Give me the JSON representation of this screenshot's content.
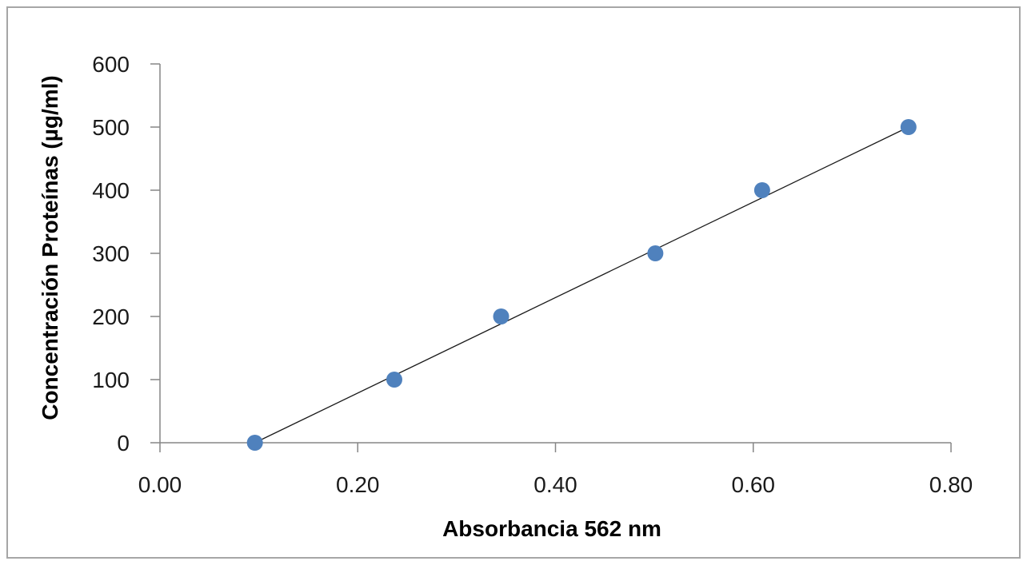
{
  "chart_data": {
    "type": "scatter",
    "title": "",
    "xlabel": "Absorbancia 562 nm",
    "ylabel": "Concentración Proteínas (µg/ml)",
    "xlim": [
      0,
      0.8
    ],
    "ylim": [
      0,
      600
    ],
    "x_ticks": [
      "0.00",
      "0.20",
      "0.40",
      "0.60",
      "0.80"
    ],
    "y_ticks": [
      "0",
      "100",
      "200",
      "300",
      "400",
      "500",
      "600"
    ],
    "x_tick_values": [
      0,
      0.2,
      0.4,
      0.6,
      0.8
    ],
    "y_tick_values": [
      0,
      100,
      200,
      300,
      400,
      500,
      600
    ],
    "grid": false,
    "legend": "none",
    "series": [
      {
        "x": [
          0.096,
          0.237,
          0.345,
          0.501,
          0.609,
          0.757
        ],
        "y": [
          0,
          100,
          200,
          300,
          400,
          500
        ],
        "marker_color": "#4f81bd"
      }
    ],
    "trendline": {
      "type": "linear",
      "x": [
        0.096,
        0.757
      ],
      "y": [
        0,
        500
      ],
      "color": "#1a1a1a"
    }
  },
  "colors": {
    "frame": "#a6a6a6",
    "axis": "#868686"
  }
}
